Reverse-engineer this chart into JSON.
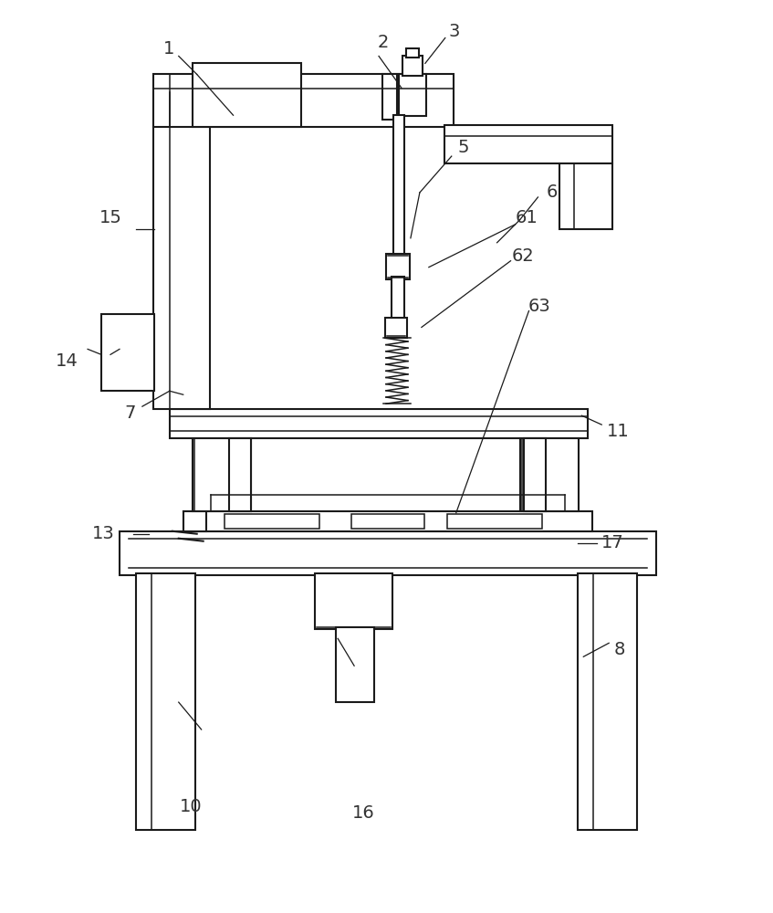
{
  "bg": "#ffffff",
  "lc": "#1a1a1a",
  "lw": 1.5,
  "lw2": 1.1,
  "lw3": 0.9,
  "fs": 14,
  "fc": "#333333",
  "fig_w": 8.47,
  "fig_h": 10.0
}
